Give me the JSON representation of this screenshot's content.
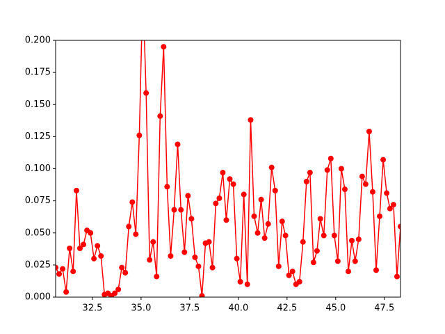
{
  "chart_data": {
    "type": "line",
    "x": [
      30.61,
      30.79,
      30.97,
      31.15,
      31.33,
      31.51,
      31.68,
      31.86,
      32.04,
      32.22,
      32.4,
      32.58,
      32.76,
      32.94,
      33.12,
      33.3,
      33.47,
      33.65,
      33.83,
      34.01,
      34.19,
      34.37,
      34.55,
      34.73,
      34.91,
      35.09,
      35.26,
      35.44,
      35.62,
      35.8,
      35.98,
      36.16,
      36.34,
      36.52,
      36.7,
      36.88,
      37.05,
      37.23,
      37.41,
      37.59,
      37.77,
      37.95,
      38.13,
      38.31,
      38.49,
      38.67,
      38.84,
      39.02,
      39.2,
      39.38,
      39.56,
      39.74,
      39.92,
      40.1,
      40.28,
      40.46,
      40.63,
      40.81,
      40.99,
      41.17,
      41.35,
      41.53,
      41.71,
      41.89,
      42.07,
      42.25,
      42.42,
      42.6,
      42.78,
      42.96,
      43.14,
      43.32,
      43.5,
      43.68,
      43.86,
      44.04,
      44.21,
      44.39,
      44.57,
      44.75,
      44.93,
      45.11,
      45.29,
      45.47,
      45.65,
      45.83,
      46.0,
      46.18,
      46.36,
      46.54,
      46.72,
      46.9,
      47.08,
      47.26,
      47.44,
      47.62,
      47.79,
      47.97,
      48.15,
      48.33
    ],
    "series": [
      {
        "color": "#ff0000",
        "values": [
          0.023,
          0.018,
          0.022,
          0.004,
          0.038,
          0.02,
          0.083,
          0.038,
          0.041,
          0.052,
          0.05,
          0.03,
          0.04,
          0.032,
          0.002,
          0.003,
          0.001,
          0.003,
          0.006,
          0.023,
          0.019,
          0.055,
          0.074,
          0.049,
          0.126,
          0.24,
          0.159,
          0.029,
          0.043,
          0.016,
          0.141,
          0.195,
          0.086,
          0.032,
          0.068,
          0.119,
          0.068,
          0.035,
          0.079,
          0.061,
          0.031,
          0.024,
          0.001,
          0.042,
          0.043,
          0.023,
          0.073,
          0.077,
          0.097,
          0.06,
          0.092,
          0.088,
          0.03,
          0.012,
          0.08,
          0.01,
          0.138,
          0.063,
          0.05,
          0.076,
          0.046,
          0.057,
          0.101,
          0.083,
          0.024,
          0.059,
          0.048,
          0.017,
          0.02,
          0.01,
          0.012,
          0.043,
          0.09,
          0.097,
          0.027,
          0.036,
          0.061,
          0.048,
          0.099,
          0.108,
          0.048,
          0.028,
          0.1,
          0.084,
          0.02,
          0.044,
          0.028,
          0.045,
          0.094,
          0.088,
          0.129,
          0.082,
          0.021,
          0.063,
          0.107,
          0.081,
          0.069,
          0.072,
          0.016,
          0.055
        ]
      }
    ],
    "xlim": [
      30.61,
      48.33
    ],
    "xticks": [
      32.5,
      {
        "value": 35,
        "label": "35.0"
      },
      37.5,
      {
        "value": 40,
        "label": "40.0"
      },
      42.5,
      {
        "value": 45,
        "label": "45.0"
      },
      47.5
    ],
    "ylim": [
      0,
      0.2
    ],
    "yticks": [
      {
        "value": 0,
        "label": "0.000"
      },
      0.025,
      {
        "value": 0.05,
        "label": "0.050"
      },
      0.075,
      {
        "value": 0.1,
        "label": "0.100"
      },
      0.125,
      {
        "value": 0.15,
        "label": "0.150"
      },
      0.175,
      {
        "value": 0.2,
        "label": "0.200"
      }
    ],
    "grid": false
  }
}
